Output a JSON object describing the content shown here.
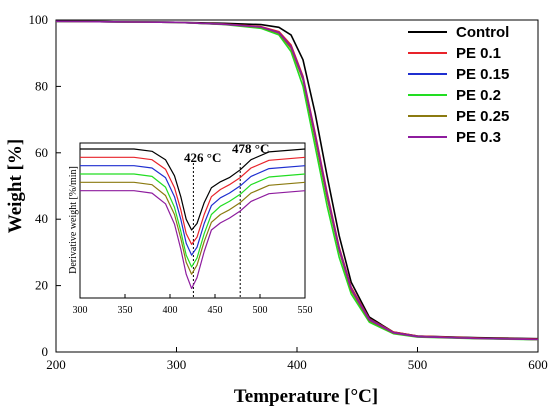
{
  "chart_data": [
    {
      "type": "line",
      "xlabel": "Temperature [°C]",
      "ylabel": "Weight [%]",
      "xlim": [
        200,
        600
      ],
      "ylim": [
        0,
        100
      ],
      "xticks": [
        "200",
        "300",
        "400",
        "500",
        "600"
      ],
      "yticks": [
        "0",
        "20",
        "40",
        "60",
        "80",
        "100"
      ],
      "grid": false,
      "legend_position": "top-right",
      "series": [
        {
          "name": "Control",
          "color": "#000000",
          "x": [
            200,
            300,
            340,
            370,
            385,
            395,
            405,
            415,
            425,
            435,
            445,
            460,
            480,
            500,
            550,
            600
          ],
          "y": [
            99.6,
            99.3,
            99.0,
            98.6,
            97.8,
            95.5,
            88.0,
            72.0,
            53.0,
            35.0,
            21.0,
            10.5,
            6.0,
            4.8,
            4.3,
            4.0
          ]
        },
        {
          "name": "PE 0.1",
          "color": "#e8232a",
          "x": [
            200,
            300,
            340,
            370,
            385,
            395,
            405,
            415,
            425,
            435,
            445,
            460,
            480,
            500,
            550,
            600
          ],
          "y": [
            99.6,
            99.3,
            98.8,
            98.0,
            96.5,
            92.5,
            83.0,
            66.0,
            48.0,
            31.5,
            19.5,
            10.0,
            6.0,
            4.8,
            4.2,
            3.9
          ]
        },
        {
          "name": "PE 0.15",
          "color": "#1f2fd0",
          "x": [
            200,
            300,
            340,
            370,
            385,
            395,
            405,
            415,
            425,
            435,
            445,
            460,
            480,
            500,
            550,
            600
          ],
          "y": [
            99.6,
            99.3,
            98.7,
            97.8,
            96.2,
            92.0,
            82.5,
            65.0,
            47.0,
            31.0,
            19.0,
            9.8,
            5.8,
            4.7,
            4.1,
            3.8
          ]
        },
        {
          "name": "PE 0.2",
          "color": "#22dd22",
          "x": [
            200,
            300,
            340,
            370,
            385,
            395,
            405,
            415,
            425,
            435,
            445,
            460,
            480,
            500,
            550,
            600
          ],
          "y": [
            99.6,
            99.3,
            98.6,
            97.5,
            95.5,
            90.5,
            80.0,
            62.0,
            44.0,
            28.5,
            17.5,
            9.0,
            5.5,
            4.5,
            4.0,
            3.7
          ]
        },
        {
          "name": "PE 0.25",
          "color": "#8b7a10",
          "x": [
            200,
            300,
            340,
            370,
            385,
            395,
            405,
            415,
            425,
            435,
            445,
            460,
            480,
            500,
            550,
            600
          ],
          "y": [
            99.6,
            99.3,
            98.7,
            97.8,
            96.0,
            91.5,
            82.0,
            64.5,
            46.5,
            30.5,
            18.5,
            9.5,
            5.7,
            4.6,
            4.1,
            3.8
          ]
        },
        {
          "name": "PE 0.3",
          "color": "#8e1c9e",
          "x": [
            200,
            300,
            340,
            370,
            385,
            395,
            405,
            415,
            425,
            435,
            445,
            460,
            480,
            500,
            550,
            600
          ],
          "y": [
            99.6,
            99.3,
            98.7,
            97.9,
            96.2,
            92.0,
            82.5,
            65.5,
            47.5,
            31.0,
            19.0,
            9.7,
            5.8,
            4.6,
            4.1,
            3.8
          ]
        }
      ]
    },
    {
      "type": "line",
      "xlabel": "",
      "ylabel": "Derivative weight [%/min]",
      "xlim": [
        300,
        550
      ],
      "xticks": [
        "300",
        "350",
        "400",
        "450",
        "500",
        "550"
      ],
      "annotations": [
        "426 °C",
        "478 °C"
      ],
      "vlines": [
        426,
        478
      ],
      "series": [
        {
          "color": "#000000",
          "x": [
            300,
            360,
            380,
            395,
            405,
            412,
            418,
            424,
            430,
            438,
            446,
            456,
            466,
            478,
            490,
            510,
            550
          ],
          "y": [
            0,
            0,
            -0.4,
            -1.8,
            -4.5,
            -8.0,
            -11.8,
            -13.6,
            -12.5,
            -9.0,
            -6.5,
            -5.5,
            -4.8,
            -3.5,
            -1.8,
            -0.5,
            0
          ]
        },
        {
          "color": "#e8232a",
          "x": [
            300,
            360,
            380,
            395,
            405,
            412,
            418,
            424,
            430,
            438,
            446,
            456,
            466,
            478,
            490,
            510,
            550
          ],
          "y": [
            -1.4,
            -1.4,
            -1.8,
            -3.4,
            -6.5,
            -10.2,
            -14.2,
            -16.0,
            -14.8,
            -11.0,
            -8.0,
            -6.8,
            -6.0,
            -4.8,
            -3.2,
            -1.9,
            -1.4
          ]
        },
        {
          "color": "#1f2fd0",
          "x": [
            300,
            360,
            380,
            395,
            405,
            412,
            418,
            424,
            430,
            438,
            446,
            456,
            466,
            478,
            490,
            510,
            550
          ],
          "y": [
            -2.8,
            -2.8,
            -3.2,
            -4.8,
            -8.0,
            -11.8,
            -15.8,
            -17.8,
            -16.5,
            -12.5,
            -9.5,
            -8.2,
            -7.4,
            -6.2,
            -4.6,
            -3.3,
            -2.8
          ]
        },
        {
          "color": "#22dd22",
          "x": [
            300,
            360,
            380,
            395,
            405,
            412,
            418,
            424,
            430,
            438,
            446,
            456,
            466,
            478,
            490,
            510,
            550
          ],
          "y": [
            -4.2,
            -4.2,
            -4.6,
            -6.4,
            -9.8,
            -13.8,
            -17.8,
            -19.8,
            -18.3,
            -14.2,
            -11.0,
            -9.6,
            -8.8,
            -7.6,
            -6.0,
            -4.7,
            -4.2
          ]
        },
        {
          "color": "#8b7a10",
          "x": [
            300,
            360,
            380,
            395,
            405,
            412,
            418,
            424,
            430,
            438,
            446,
            456,
            466,
            478,
            490,
            510,
            550
          ],
          "y": [
            -5.6,
            -5.6,
            -6.0,
            -7.8,
            -11.0,
            -15.0,
            -19.0,
            -21.0,
            -19.5,
            -15.5,
            -12.3,
            -11.0,
            -10.2,
            -9.0,
            -7.4,
            -6.1,
            -5.6
          ]
        },
        {
          "color": "#8e1c9e",
          "x": [
            300,
            360,
            380,
            395,
            405,
            412,
            418,
            424,
            430,
            438,
            446,
            456,
            466,
            478,
            490,
            510,
            550
          ],
          "y": [
            -7.0,
            -7.0,
            -7.4,
            -9.2,
            -12.6,
            -16.8,
            -21.0,
            -23.4,
            -21.6,
            -17.2,
            -13.6,
            -12.4,
            -11.6,
            -10.4,
            -8.8,
            -7.5,
            -7.0
          ]
        }
      ]
    }
  ]
}
